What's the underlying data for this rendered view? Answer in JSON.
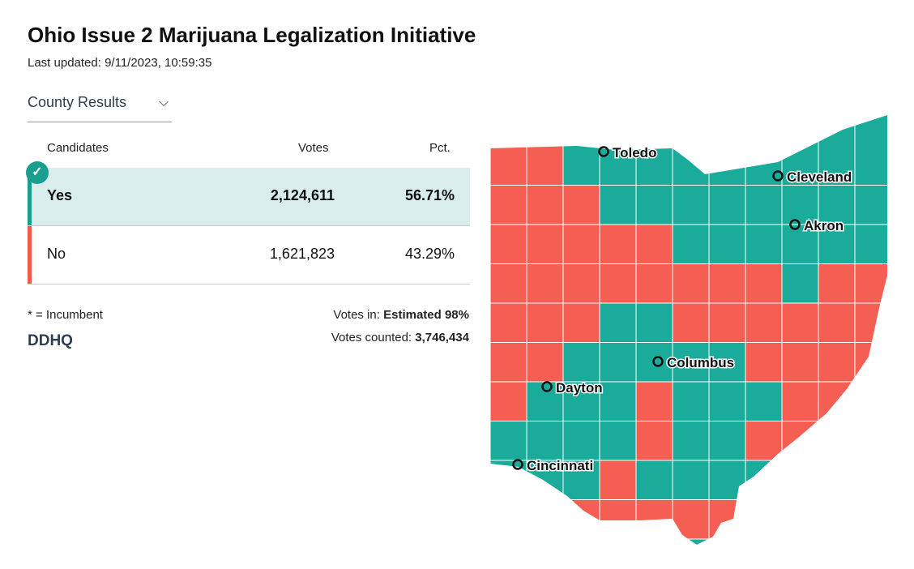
{
  "title": "Ohio Issue 2 Marijuana Legalization Initiative",
  "last_updated": "Last updated: 9/11/2023, 10:59:35",
  "dropdown": {
    "selected": "County Results"
  },
  "table": {
    "headers": {
      "candidates": "Candidates",
      "votes": "Votes",
      "pct": "Pct."
    },
    "rows": [
      {
        "name": "Yes",
        "votes": "2,124,611",
        "pct": "56.71%",
        "winner": true,
        "color": "#1a9e8f"
      },
      {
        "name": "No",
        "votes": "1,621,823",
        "pct": "43.29%",
        "winner": false,
        "color": "#f05a4f"
      }
    ]
  },
  "footer": {
    "incumbent_note": "* = Incumbent",
    "votes_in_label": "Votes in:",
    "votes_in_value": "Estimated 98%",
    "votes_counted_label": "Votes counted:",
    "votes_counted_value": "3,746,434",
    "logo": "DDHQ"
  },
  "map": {
    "colors": {
      "yes": "#1aab9b",
      "no": "#f55f53"
    },
    "cities": [
      "Toledo",
      "Cleveland",
      "Akron",
      "Columbus",
      "Dayton",
      "Cincinnati"
    ],
    "county_fill_grid": [
      "NNYYYYYYYYY",
      "NNNYYYYYYYY",
      "NNNNNYYYYYY",
      "NNNNNNNNYNN",
      "NNNYYNNNNNN",
      "NNYYYYYNNNN",
      "NYYYNYYYNNN",
      "YYYYNYYNNNN",
      "YYYNYYYYNNN",
      "YYNNNNNNNNN",
      "YYYNNYNNNNN"
    ]
  }
}
